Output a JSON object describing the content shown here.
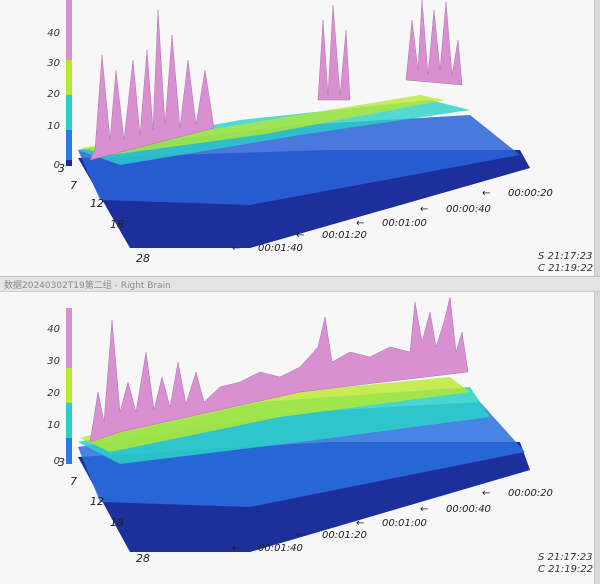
{
  "window": {
    "bottom_title": "数据20240302T19第二组 - Right Brain"
  },
  "colors": {
    "background": "#f7f7f7",
    "low": "#1a2a9e",
    "mid_low": "#2a7be8",
    "mid": "#2ad0c8",
    "mid_high": "#b8e82a",
    "high": "#d890d0"
  },
  "panels": [
    {
      "z_ticks": [
        "40",
        "30",
        "20",
        "10",
        "0"
      ],
      "y_ticks": [
        "3",
        "7",
        "12",
        "18",
        "28"
      ],
      "time_ticks": [
        "00:00:20",
        "00:00:40",
        "00:01:00",
        "00:01:20",
        "00:01:40"
      ],
      "stamp_s": "S 21:17:23",
      "stamp_c": "C 21:19:22"
    },
    {
      "z_ticks": [
        "40",
        "30",
        "20",
        "10",
        "0"
      ],
      "y_ticks": [
        "3",
        "7",
        "12",
        "18",
        "28"
      ],
      "time_ticks": [
        "00:00:20",
        "00:00:40",
        "00:01:00",
        "00:01:20",
        "00:01:40"
      ],
      "stamp_s": "S 21:17:23",
      "stamp_c": "C 21:19:22"
    }
  ]
}
